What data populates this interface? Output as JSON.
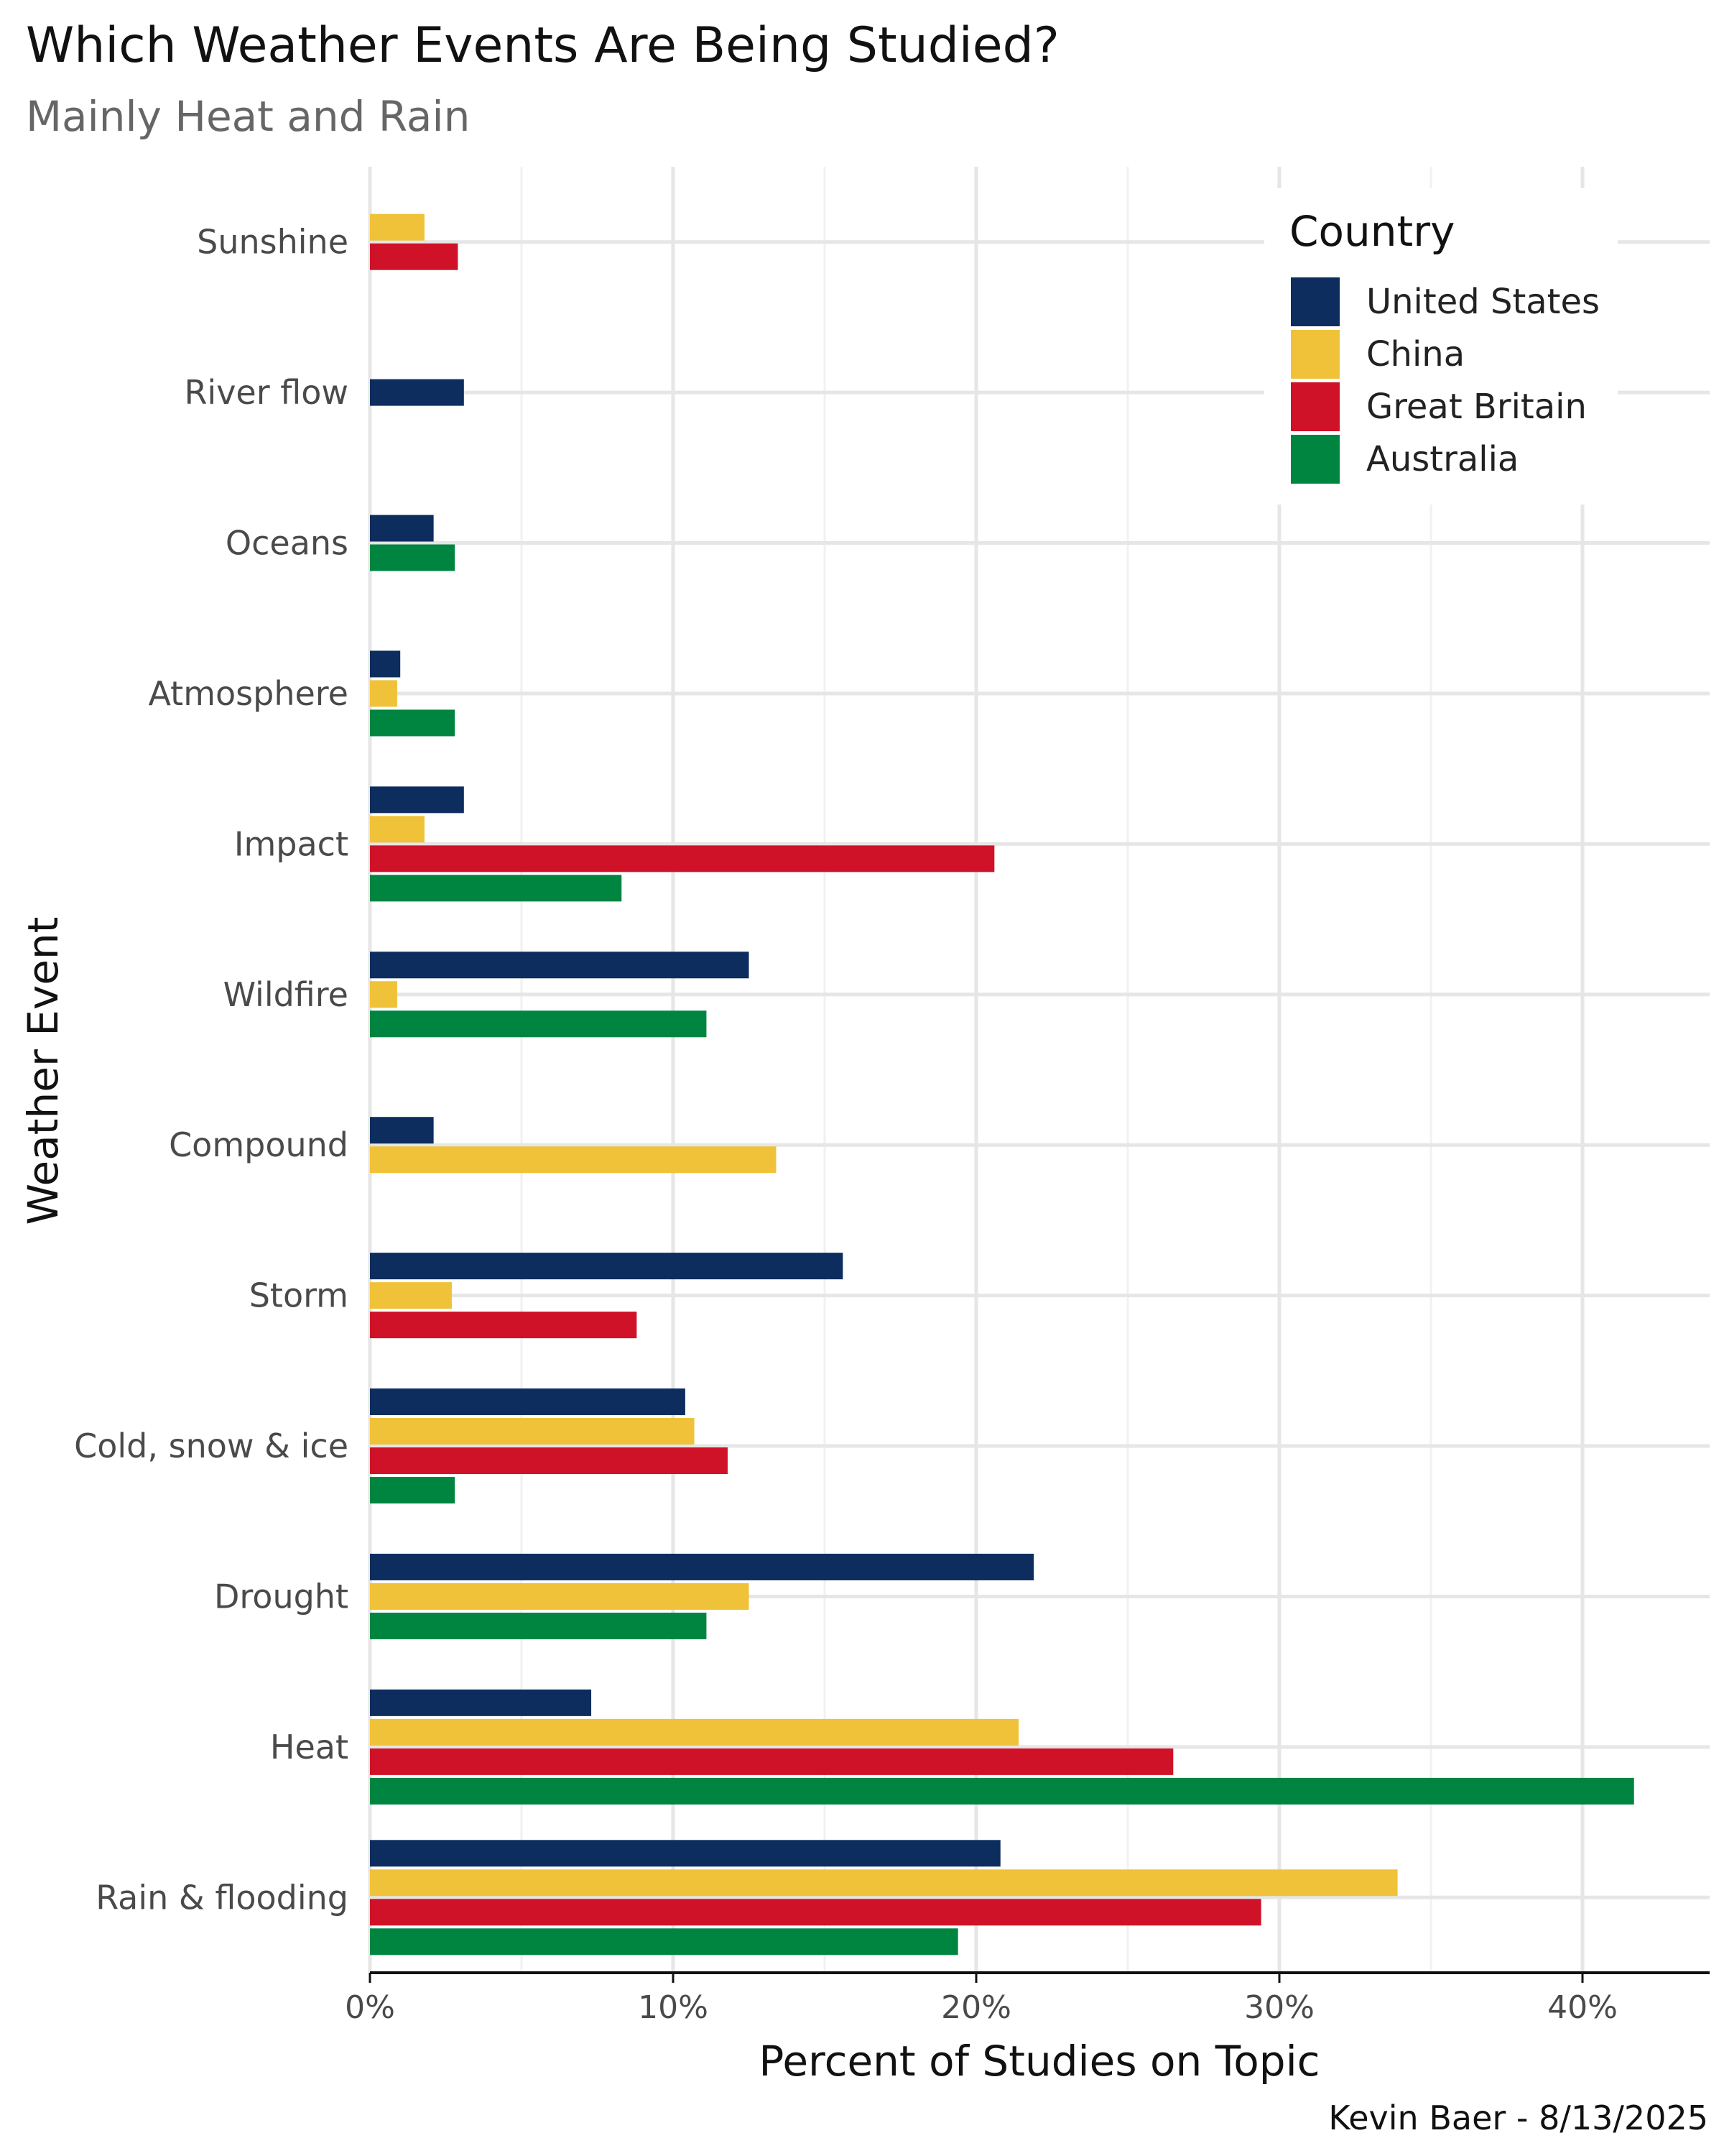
{
  "chart_data": {
    "type": "bar",
    "orientation": "horizontal",
    "title": "Which Weather Events Are Being Studied?",
    "subtitle": "Mainly Heat and Rain",
    "xlabel": "Percent of Studies on Topic",
    "ylabel": "Weather Event",
    "caption": "Kevin Baer - 8/13/2025",
    "xlim": [
      0,
      44
    ],
    "xticks": [
      0,
      10,
      20,
      30,
      40
    ],
    "xtick_labels": [
      "0%",
      "10%",
      "20%",
      "30%",
      "40%"
    ],
    "grid": true,
    "legend": {
      "title": "Country",
      "placement": "top-right"
    },
    "categories": [
      "Sunshine",
      "River flow",
      "Oceans",
      "Atmosphere",
      "Impact",
      "Wildfire",
      "Compound",
      "Storm",
      "Cold, snow & ice",
      "Drought",
      "Heat",
      "Rain & flooding"
    ],
    "series": [
      {
        "name": "United States",
        "color": "#0c2d5e",
        "values": [
          null,
          3.1,
          2.1,
          1.0,
          3.1,
          12.5,
          2.1,
          15.6,
          10.4,
          21.9,
          7.3,
          20.8
        ]
      },
      {
        "name": "China",
        "color": "#f0c23a",
        "values": [
          1.8,
          null,
          null,
          0.9,
          1.8,
          0.9,
          13.4,
          2.7,
          10.7,
          12.5,
          21.4,
          33.9
        ]
      },
      {
        "name": "Great Britain",
        "color": "#cf1228",
        "values": [
          2.9,
          null,
          null,
          null,
          20.6,
          null,
          null,
          8.8,
          11.8,
          null,
          26.5,
          29.4
        ]
      },
      {
        "name": "Australia",
        "color": "#008540",
        "values": [
          null,
          null,
          2.8,
          2.8,
          8.3,
          11.1,
          null,
          null,
          2.8,
          11.1,
          41.7,
          19.4
        ]
      }
    ]
  }
}
